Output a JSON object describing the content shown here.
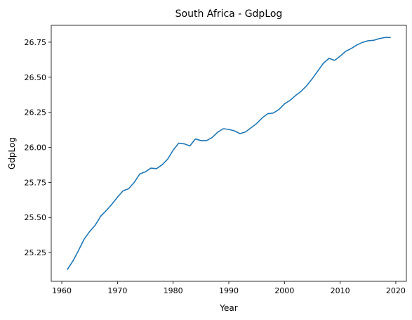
{
  "chart_data": {
    "type": "line",
    "title": "South Africa - GdpLog",
    "xlabel": "Year",
    "ylabel": "GdpLog",
    "xlim": [
      1958.1,
      2021.9
    ],
    "ylim": [
      25.045,
      26.87
    ],
    "xticks": [
      1960,
      1970,
      1980,
      1990,
      2000,
      2010,
      2020
    ],
    "yticks": [
      25.25,
      25.5,
      25.75,
      26.0,
      26.25,
      26.5,
      26.75
    ],
    "ytick_labels": [
      "25.25",
      "25.50",
      "25.75",
      "26.00",
      "26.25",
      "26.50",
      "26.75"
    ],
    "grid": false,
    "line_color": "#1f77b4",
    "series": [
      {
        "x": [
          1961,
          1962,
          1963,
          1964,
          1965,
          1966,
          1967,
          1968,
          1969,
          1970,
          1971,
          1972,
          1973,
          1974,
          1975,
          1976,
          1977,
          1978,
          1979,
          1980,
          1981,
          1982,
          1983,
          1984,
          1985,
          1986,
          1987,
          1988,
          1989,
          1990,
          1991,
          1992,
          1993,
          1994,
          1995,
          1996,
          1997,
          1998,
          1999,
          2000,
          2001,
          2002,
          2003,
          2004,
          2005,
          2006,
          2007,
          2008,
          2009,
          2010,
          2011,
          2012,
          2013,
          2014,
          2015,
          2016,
          2017,
          2018,
          2019
        ],
        "y": [
          25.13,
          25.19,
          25.265,
          25.345,
          25.4,
          25.445,
          25.51,
          25.55,
          25.595,
          25.645,
          25.69,
          25.705,
          25.75,
          25.81,
          25.825,
          25.852,
          25.848,
          25.875,
          25.915,
          25.98,
          26.03,
          26.025,
          26.01,
          26.06,
          26.048,
          26.048,
          26.07,
          26.108,
          26.133,
          26.128,
          26.118,
          26.098,
          26.11,
          26.14,
          26.17,
          26.21,
          26.24,
          26.245,
          26.27,
          26.31,
          26.335,
          26.37,
          26.4,
          26.44,
          26.49,
          26.545,
          26.6,
          26.635,
          26.62,
          26.65,
          26.685,
          26.705,
          26.73,
          26.748,
          26.76,
          26.763,
          26.775,
          26.783,
          26.783
        ]
      }
    ]
  }
}
